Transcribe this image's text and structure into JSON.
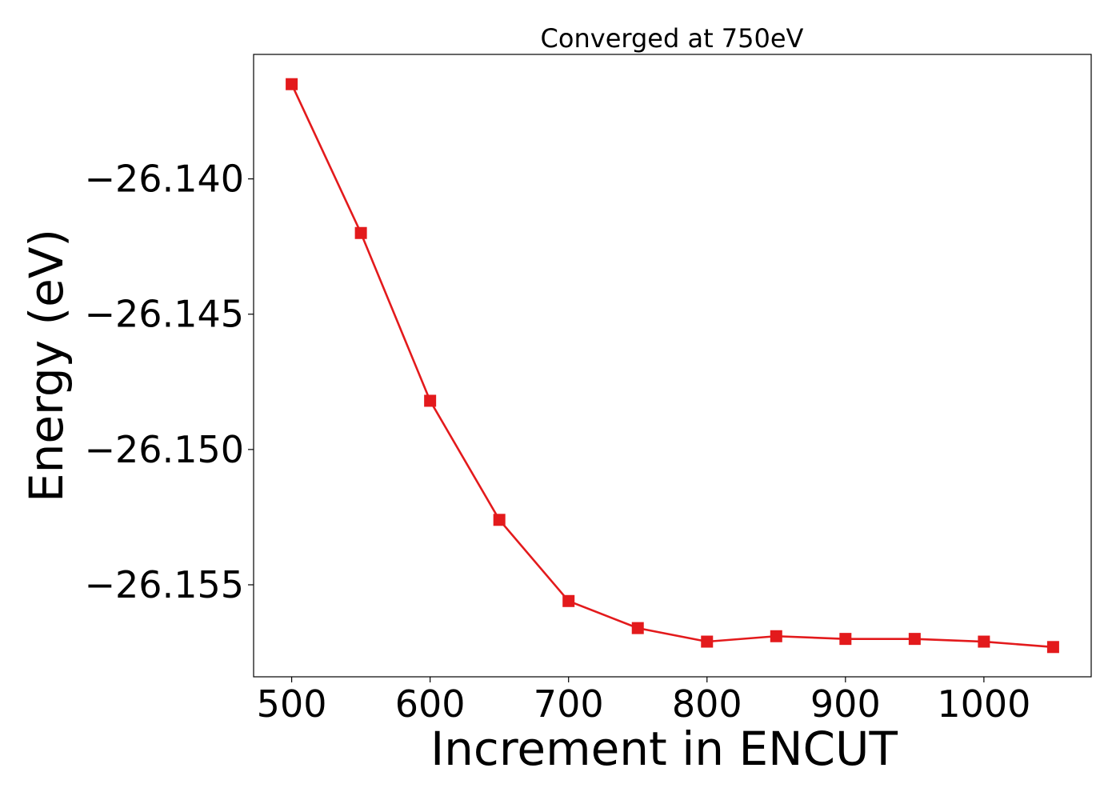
{
  "chart_data": {
    "type": "line",
    "title": "Converged at 750eV",
    "xlabel": "Increment in ENCUT",
    "ylabel": "Energy (eV)",
    "x": [
      500,
      550,
      600,
      650,
      700,
      750,
      800,
      850,
      900,
      950,
      1000,
      1050
    ],
    "series": [
      {
        "values": [
          -26.1365,
          -26.142,
          -26.1482,
          -26.1526,
          -26.1556,
          -26.1566,
          -26.1571,
          -26.1569,
          -26.157,
          -26.157,
          -26.1571,
          -26.1573
        ]
      }
    ],
    "xlim": [
      472.5,
      1077.5
    ],
    "ylim": [
      -26.1584,
      -26.1354
    ],
    "x_ticks": [
      500,
      600,
      700,
      800,
      900,
      1000
    ],
    "x_tick_labels": [
      "500",
      "600",
      "700",
      "800",
      "900",
      "1000"
    ],
    "y_ticks": [
      -26.14,
      -26.145,
      -26.15,
      -26.155
    ],
    "y_tick_labels": [
      "−26.140",
      "−26.145",
      "−26.150",
      "−26.155"
    ],
    "marker": "square",
    "line_color": "#e31a1c",
    "grid": false,
    "legend": "none"
  }
}
